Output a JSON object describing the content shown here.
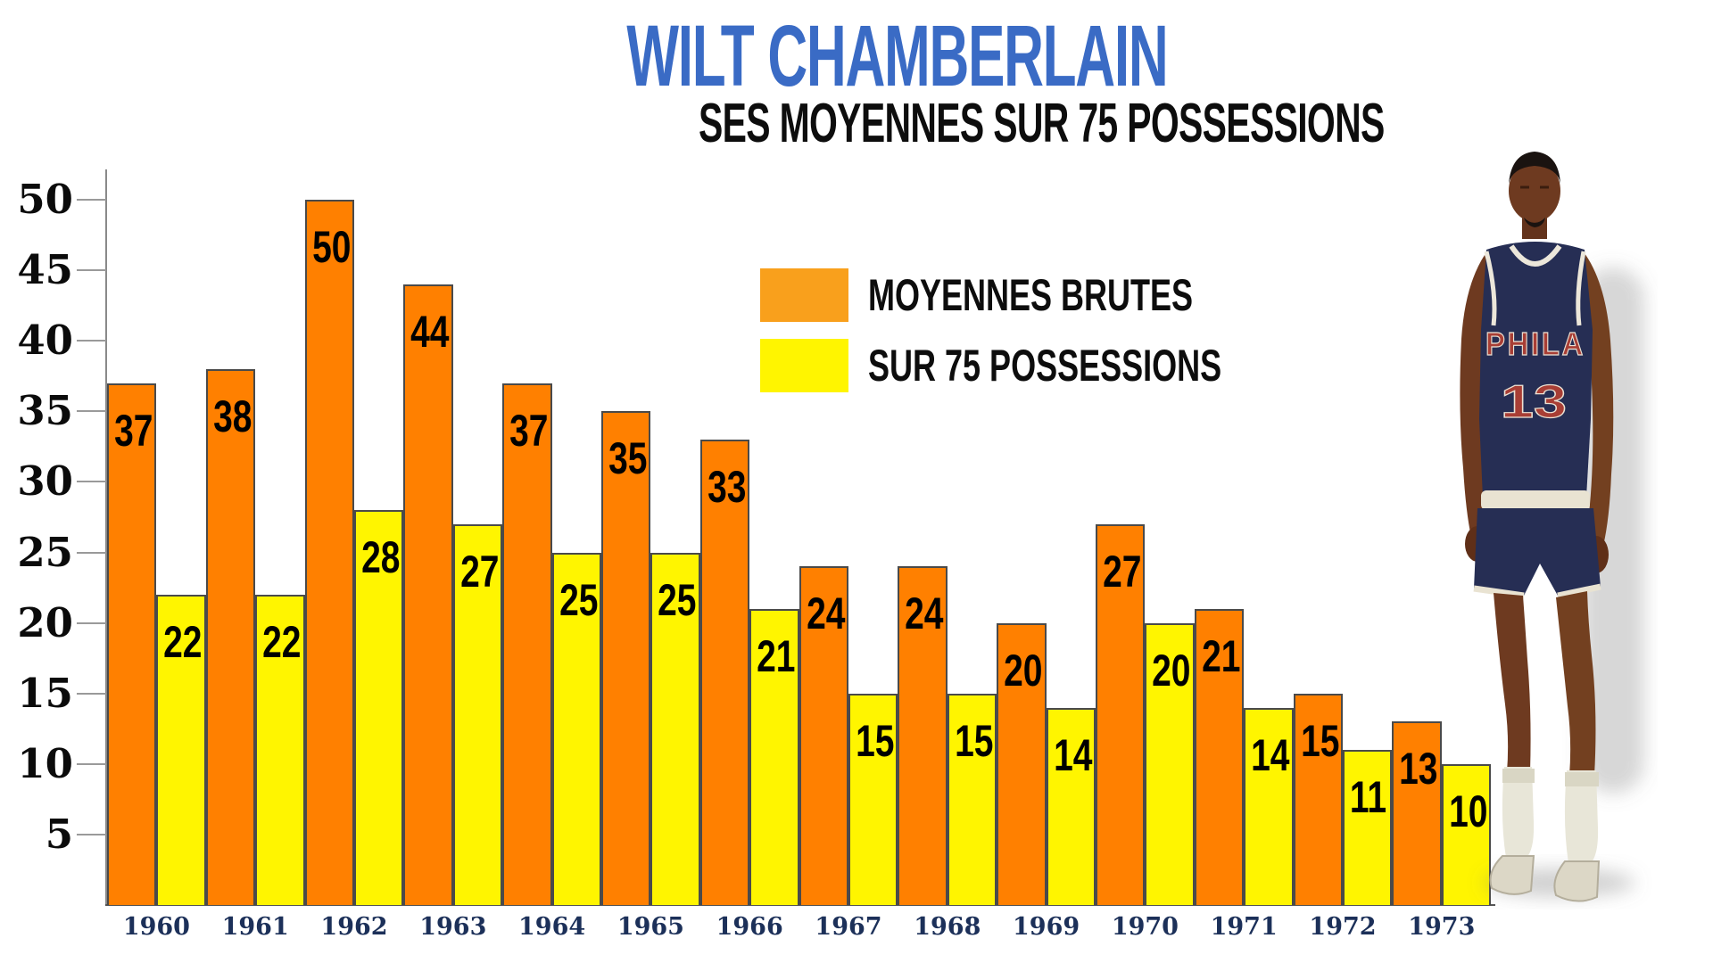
{
  "title": "WILT CHAMBERLAIN",
  "subtitle": "SES MOYENNES SUR 75 POSSESSIONS",
  "legend": [
    {
      "label": "MOYENNES BRUTES",
      "color": "#F9A01C"
    },
    {
      "label": "SUR 75 POSSESSIONS",
      "color": "#FFF500"
    }
  ],
  "photo": {
    "jersey_team": "PHILA",
    "jersey_number": "13"
  },
  "colors": {
    "title_blue": "#3A6BC5",
    "bar_orange": "#FF8000",
    "bar_yellow": "#FFF500",
    "bar_border": "#4a4a4a",
    "axis_gray": "#8a8a8a",
    "year_navy": "#1C3059"
  },
  "chart_data": {
    "type": "bar",
    "categories": [
      "1960",
      "1961",
      "1962",
      "1963",
      "1964",
      "1965",
      "1966",
      "1967",
      "1968",
      "1969",
      "1970",
      "1971",
      "1972",
      "1973"
    ],
    "series": [
      {
        "name": "MOYENNES BRUTES",
        "color": "#FF8000",
        "values": [
          37,
          38,
          50,
          44,
          37,
          35,
          33,
          24,
          24,
          20,
          27,
          21,
          15,
          13
        ]
      },
      {
        "name": "SUR 75 POSSESSIONS",
        "color": "#FFF500",
        "values": [
          22,
          22,
          28,
          27,
          25,
          25,
          21,
          15,
          15,
          14,
          20,
          14,
          11,
          10
        ]
      }
    ],
    "title": "WILT CHAMBERLAIN",
    "subtitle": "SES MOYENNES SUR 75 POSSESSIONS",
    "xlabel": "",
    "ylabel": "",
    "yticks": [
      5,
      10,
      15,
      20,
      25,
      30,
      35,
      40,
      45,
      50
    ],
    "ylim": [
      0,
      52
    ],
    "grid": false,
    "legend_position": "upper-center-right",
    "value_labels": "inside-top"
  }
}
